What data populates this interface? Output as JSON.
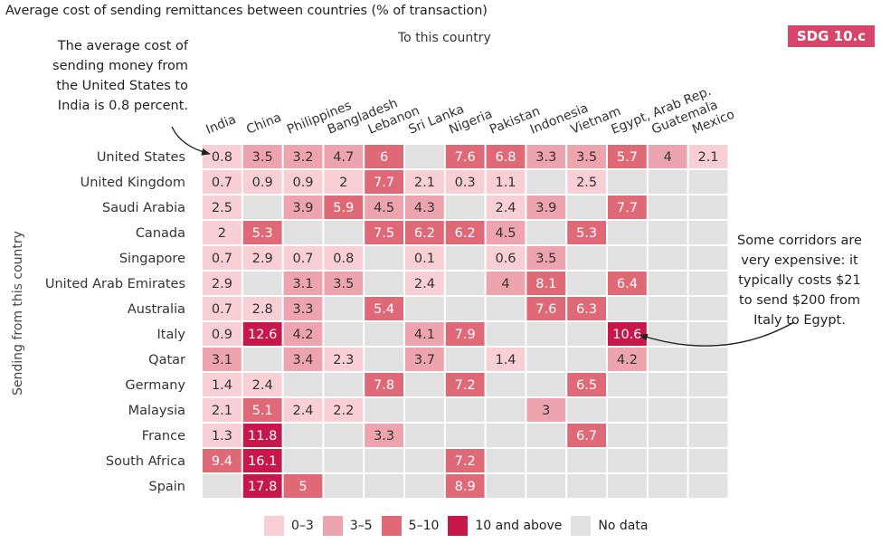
{
  "title": "Average cost of sending remittances between countries (% of transaction)",
  "badge": "SDG 10.c",
  "annotations": {
    "left": [
      "The average cost of",
      "sending money from",
      "the United States to",
      "India is 0.8 percent."
    ],
    "right": [
      "Some corridors are",
      "very expensive: it",
      "typically costs $21",
      "to send $200 from",
      "Italy to Egypt."
    ]
  },
  "colors": {
    "band_0_3": "#f7cfd4",
    "band_3_5": "#eea4ae",
    "band_5_10": "#df6977",
    "band_10_plus": "#c8174b",
    "no_data": "#e1e1e1"
  },
  "chart_data": {
    "type": "heatmap",
    "title": "Average cost of sending remittances between countries (% of transaction)",
    "xlabel": "To this country",
    "ylabel": "Sending from this country",
    "columns": [
      "India",
      "China",
      "Philippines",
      "Bangladesh",
      "Lebanon",
      "Sri Lanka",
      "Nigeria",
      "Pakistan",
      "Indonesia",
      "Vietnam",
      "Egypt, Arab Rep.",
      "Guatemala",
      "Mexico"
    ],
    "rows": [
      "United States",
      "United Kingdom",
      "Saudi Arabia",
      "Canada",
      "Singapore",
      "United Arab Emirates",
      "Australia",
      "Italy",
      "Qatar",
      "Germany",
      "Malaysia",
      "France",
      "South Africa",
      "Spain"
    ],
    "values": [
      [
        0.8,
        3.5,
        3.2,
        4.7,
        6,
        null,
        7.6,
        6.8,
        3.3,
        3.5,
        5.7,
        4,
        2.1
      ],
      [
        0.7,
        0.9,
        0.9,
        2,
        7.7,
        2.1,
        0.3,
        1.1,
        null,
        2.5,
        null,
        null,
        null
      ],
      [
        2.5,
        null,
        3.9,
        5.9,
        4.5,
        4.3,
        null,
        2.4,
        3.9,
        null,
        7.7,
        null,
        null
      ],
      [
        2,
        5.3,
        null,
        null,
        7.5,
        6.2,
        6.2,
        4.5,
        null,
        5.3,
        null,
        null,
        null
      ],
      [
        0.7,
        2.9,
        0.7,
        0.8,
        null,
        0.1,
        null,
        0.6,
        3.5,
        null,
        null,
        null,
        null
      ],
      [
        2.9,
        null,
        3.1,
        3.5,
        null,
        2.4,
        null,
        4,
        8.1,
        null,
        6.4,
        null,
        null
      ],
      [
        0.7,
        2.8,
        3.3,
        null,
        5.4,
        null,
        null,
        null,
        7.6,
        6.3,
        null,
        null,
        null
      ],
      [
        0.9,
        12.6,
        4.2,
        null,
        null,
        4.1,
        7.9,
        null,
        null,
        null,
        10.6,
        null,
        null
      ],
      [
        3.1,
        null,
        3.4,
        2.3,
        null,
        3.7,
        null,
        1.4,
        null,
        null,
        4.2,
        null,
        null
      ],
      [
        1.4,
        2.4,
        null,
        null,
        7.8,
        null,
        7.2,
        null,
        null,
        6.5,
        null,
        null,
        null
      ],
      [
        2.1,
        5.1,
        2.4,
        2.2,
        null,
        null,
        null,
        null,
        3,
        null,
        null,
        null,
        null
      ],
      [
        1.3,
        11.8,
        null,
        null,
        3.3,
        null,
        null,
        null,
        null,
        6.7,
        null,
        null,
        null
      ],
      [
        9.4,
        16.1,
        null,
        null,
        null,
        null,
        7.2,
        null,
        null,
        null,
        null,
        null,
        null
      ],
      [
        null,
        17.8,
        5,
        null,
        null,
        null,
        8.9,
        null,
        null,
        null,
        null,
        null,
        null
      ]
    ],
    "legend": {
      "placement": "bottom",
      "items": [
        {
          "label": "0–3",
          "color": "#f7cfd4"
        },
        {
          "label": "3–5",
          "color": "#eea4ae"
        },
        {
          "label": "5–10",
          "color": "#df6977"
        },
        {
          "label": "10 and above",
          "color": "#c8174b"
        },
        {
          "label": "No data",
          "color": "#e1e1e1"
        }
      ]
    }
  }
}
